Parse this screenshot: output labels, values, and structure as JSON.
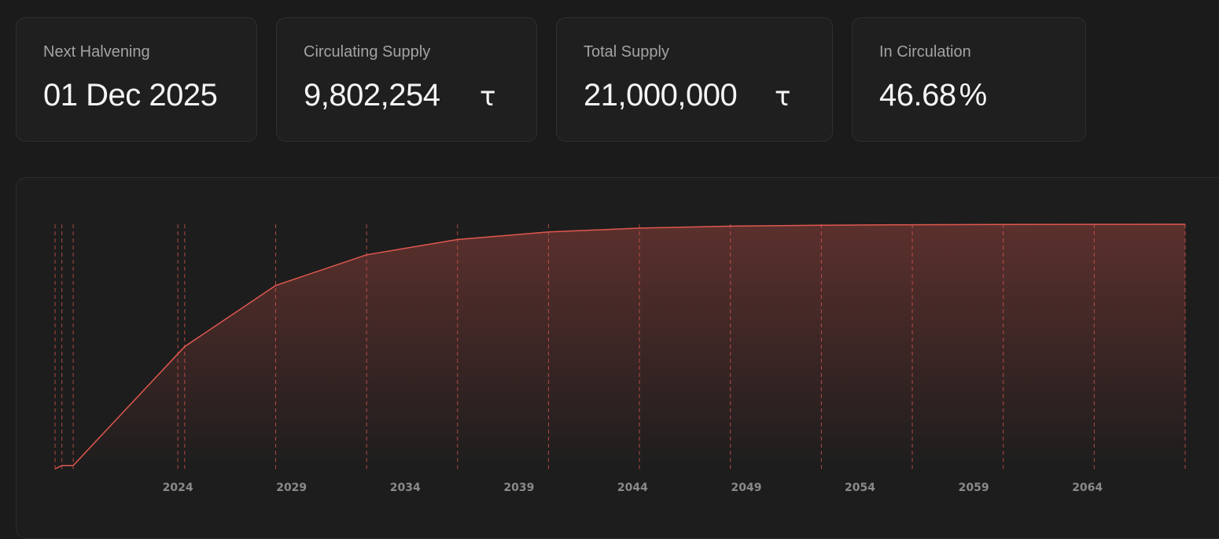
{
  "stats": {
    "next_halvening": {
      "label": "Next Halvening",
      "value": "01 Dec 2025"
    },
    "circulating_supply": {
      "label": "Circulating Supply",
      "value": "9,802,254",
      "symbol": "τ"
    },
    "total_supply": {
      "label": "Total Supply",
      "value": "21,000,000",
      "symbol": "τ"
    },
    "in_circulation": {
      "label": "In Circulation",
      "value": "46.68",
      "unit": "%"
    }
  },
  "colors": {
    "accent": "#e0584f",
    "background": "#1b1b1b",
    "card": "#1f1f1f"
  },
  "chart_data": {
    "type": "area",
    "title": "",
    "xlabel": "",
    "ylabel": "",
    "x_ticks": [
      "2024",
      "2029",
      "2034",
      "2039",
      "2044",
      "2049",
      "2054",
      "2059",
      "2064"
    ],
    "x": [
      2019.0,
      2019.3,
      2019.8,
      2024.7,
      2028.7,
      2032.7,
      2036.7,
      2040.7,
      2044.7,
      2048.7,
      2052.7,
      2056.7,
      2060.7,
      2064.7,
      2068.7
    ],
    "y": [
      0,
      0.3,
      0.3,
      10.5,
      15.75,
      18.38,
      19.69,
      20.34,
      20.67,
      20.84,
      20.92,
      20.96,
      20.98,
      20.99,
      21.0
    ],
    "ylim": [
      0,
      21
    ],
    "halving_markers": [
      2019.0,
      2019.3,
      2019.8,
      2024.4,
      2024.7,
      2028.7,
      2032.7,
      2036.7,
      2040.7,
      2044.7,
      2048.7,
      2052.7,
      2056.7,
      2060.7,
      2064.7,
      2068.7
    ],
    "grid": false,
    "legend": "none"
  }
}
